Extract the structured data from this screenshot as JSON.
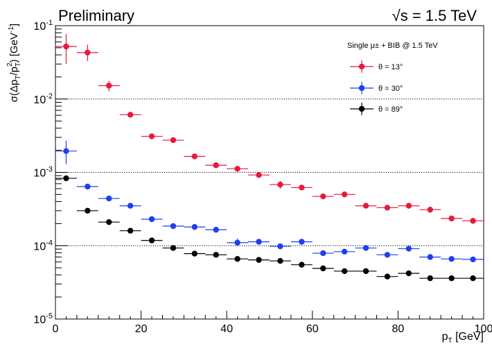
{
  "chart_data": {
    "type": "scatter",
    "title_left": "Preliminary",
    "title_right": "√s = 1.5 TeV",
    "ylabel": "σ(Δp_T/p_T^2) [GeV⁻¹]",
    "ylabel_parts": {
      "pre": "σ(Δp",
      "sub1": "T",
      "mid": "/p",
      "sub2": "T",
      "sup2": "2",
      "post": ") [GeV",
      "sup": "-1",
      "end": "]"
    },
    "xlabel_parts": {
      "pre": "p",
      "sub": "T",
      "post": " [GeV]"
    },
    "xlim": [
      0,
      100
    ],
    "ylim": [
      1e-05,
      0.1
    ],
    "yscale": "log",
    "x_ticks": [
      0,
      20,
      40,
      60,
      80,
      100
    ],
    "y_ticks": [
      {
        "value": 1e-05,
        "base": "10",
        "exp": "-5"
      },
      {
        "value": 0.0001,
        "base": "10",
        "exp": "-4"
      },
      {
        "value": 0.001,
        "base": "10",
        "exp": "-3"
      },
      {
        "value": 0.01,
        "base": "10",
        "exp": "-2"
      },
      {
        "value": 0.1,
        "base": "10",
        "exp": "-1"
      }
    ],
    "grid_y": [
      0.0001,
      0.001,
      0.01
    ],
    "x_bin_halfwidth": 2.5,
    "legend": {
      "header": "Single μ± + BIB @ 1.5 TeV",
      "position": "top-right"
    },
    "series": [
      {
        "name": "θ = 13°",
        "color": "#e8193c",
        "x": [
          2.5,
          7.5,
          12.5,
          17.5,
          22.5,
          27.5,
          32.5,
          37.5,
          42.5,
          47.5,
          52.5,
          57.5,
          62.5,
          67.5,
          72.5,
          77.5,
          82.5,
          87.5,
          92.5,
          97.5
        ],
        "y": [
          0.052,
          0.043,
          0.0152,
          0.0061,
          0.0031,
          0.00275,
          0.00165,
          0.00125,
          0.00112,
          0.00092,
          0.00068,
          0.00062,
          0.00047,
          0.0005,
          0.00035,
          0.00033,
          0.00035,
          0.00031,
          0.000235,
          0.000218
        ],
        "yerr_low": [
          0.022,
          0.01,
          0.0025,
          0.0004,
          0.00015,
          0.00013,
          9e-05,
          7e-05,
          6e-05,
          4e-05,
          8e-05,
          3e-05,
          2e-05,
          3e-05,
          2e-05,
          2e-05,
          2e-05,
          3e-05,
          1.5e-05,
          1.2e-05
        ],
        "yerr_high": [
          0.025,
          0.012,
          0.0025,
          0.0004,
          0.00015,
          0.00013,
          9e-05,
          7e-05,
          6e-05,
          4e-05,
          8e-05,
          3e-05,
          2e-05,
          3e-05,
          2e-05,
          2e-05,
          2e-05,
          3e-05,
          1.5e-05,
          1.2e-05
        ]
      },
      {
        "name": "θ = 30°",
        "color": "#1d3ff0",
        "x": [
          2.5,
          7.5,
          12.5,
          17.5,
          22.5,
          27.5,
          32.5,
          37.5,
          42.5,
          47.5,
          52.5,
          57.5,
          62.5,
          67.5,
          72.5,
          77.5,
          82.5,
          87.5,
          92.5,
          97.5
        ],
        "y": [
          0.00195,
          0.00064,
          0.00044,
          0.00035,
          0.00023,
          0.000185,
          0.00018,
          0.000165,
          0.00011,
          0.000113,
          9.8e-05,
          0.000113,
          7.9e-05,
          8.3e-05,
          9.3e-05,
          7.5e-05,
          9.1e-05,
          7e-05,
          6.6e-05,
          6.5e-05
        ],
        "yerr_low": [
          0.00065,
          4e-05,
          2e-05,
          2e-05,
          1.2e-05,
          1e-05,
          1e-05,
          1.5e-05,
          1e-05,
          8e-06,
          6e-06,
          8e-06,
          5e-06,
          5e-06,
          6e-06,
          5e-06,
          8e-06,
          4e-06,
          4e-06,
          4e-06
        ],
        "yerr_high": [
          0.00075,
          4e-05,
          2e-05,
          2e-05,
          1.2e-05,
          1e-05,
          1e-05,
          1.5e-05,
          1.5e-05,
          8e-06,
          6e-06,
          8e-06,
          5e-06,
          5e-06,
          6e-06,
          5e-06,
          8e-06,
          4e-06,
          4e-06,
          4e-06
        ]
      },
      {
        "name": "θ = 89°",
        "color": "#000000",
        "x": [
          2.5,
          7.5,
          12.5,
          17.5,
          22.5,
          27.5,
          32.5,
          37.5,
          42.5,
          47.5,
          52.5,
          57.5,
          62.5,
          67.5,
          72.5,
          77.5,
          82.5,
          87.5,
          92.5,
          97.5
        ],
        "y": [
          0.00083,
          0.0003,
          0.00021,
          0.00016,
          0.000118,
          9.3e-05,
          7.8e-05,
          7.5e-05,
          6.6e-05,
          6.4e-05,
          6.2e-05,
          5.5e-05,
          4.9e-05,
          4.5e-05,
          4.5e-05,
          3.8e-05,
          4.2e-05,
          3.6e-05,
          3.6e-05,
          3.6e-05
        ],
        "yerr_low": [
          3e-05,
          1.2e-05,
          1e-05,
          8e-06,
          5e-06,
          4e-06,
          3e-06,
          3e-06,
          3e-06,
          2e-06,
          2e-06,
          2e-06,
          2e-06,
          2e-06,
          2e-06,
          2e-06,
          2e-06,
          1e-06,
          1e-06,
          1e-06
        ],
        "yerr_high": [
          3e-05,
          1.2e-05,
          1e-05,
          8e-06,
          5e-06,
          4e-06,
          3e-06,
          3e-06,
          3e-06,
          2e-06,
          2e-06,
          2e-06,
          2e-06,
          2e-06,
          2e-06,
          2e-06,
          2e-06,
          1e-06,
          1e-06,
          1e-06
        ]
      }
    ]
  }
}
